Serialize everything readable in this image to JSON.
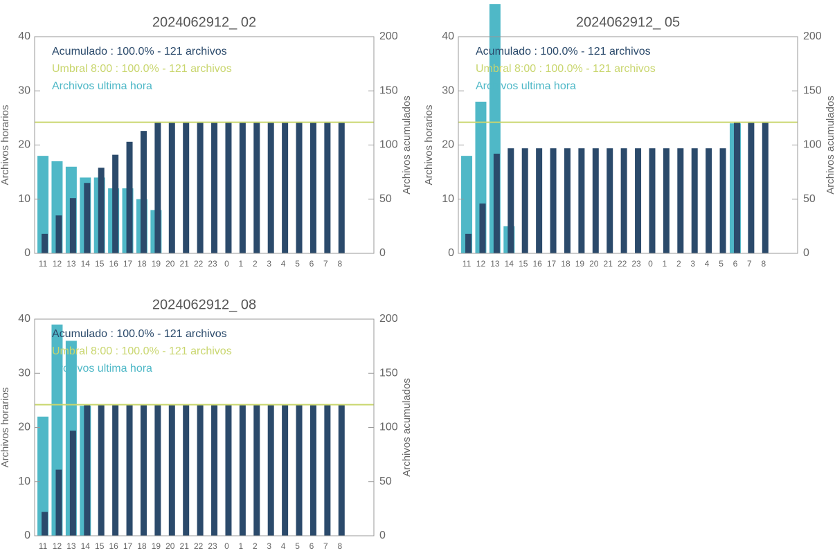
{
  "chart_data": [
    {
      "type": "bar",
      "title": "2024062912_ 02",
      "categories": [
        "11",
        "12",
        "13",
        "14",
        "15",
        "16",
        "17",
        "18",
        "19",
        "20",
        "21",
        "22",
        "23",
        "0",
        "1",
        "2",
        "3",
        "4",
        "5",
        "6",
        "7",
        "8"
      ],
      "series": [
        {
          "name": "Archivos ultima hora",
          "color": "#4fb8c7",
          "values": [
            18,
            17,
            16,
            14,
            14,
            12,
            12,
            10,
            8,
            0,
            0,
            0,
            0,
            0,
            0,
            0,
            0,
            0,
            0,
            0,
            0,
            0
          ]
        },
        {
          "name": "Acumulado : 100.0% - 121 archivos",
          "color": "#2b4a6b",
          "axis": "y2",
          "values": [
            18,
            35,
            51,
            65,
            79,
            91,
            103,
            113,
            121,
            121,
            121,
            121,
            121,
            121,
            121,
            121,
            121,
            121,
            121,
            121,
            121,
            121
          ]
        }
      ],
      "threshold": {
        "name": "Umbral 8:00 : 100.0% - 121 archivos",
        "color": "#c9d66e",
        "axis": "y2",
        "value": 121
      },
      "ylabel": "Archivos horarios",
      "y2label": "Archivos acumulados",
      "ylim": [
        0,
        40
      ],
      "yticks": [
        0,
        10,
        20,
        30,
        40
      ],
      "y2lim": [
        0,
        200
      ],
      "y2ticks": [
        0,
        50,
        100,
        150,
        200
      ]
    },
    {
      "type": "bar",
      "title": "2024062912_ 05",
      "categories": [
        "11",
        "12",
        "13",
        "14",
        "15",
        "16",
        "17",
        "18",
        "19",
        "20",
        "21",
        "22",
        "23",
        "0",
        "1",
        "2",
        "3",
        "4",
        "5",
        "6",
        "7",
        "8"
      ],
      "series": [
        {
          "name": "Archivos ultima hora",
          "color": "#4fb8c7",
          "values": [
            18,
            28,
            46,
            5,
            0,
            0,
            0,
            0,
            0,
            0,
            0,
            0,
            0,
            0,
            0,
            0,
            0,
            0,
            0,
            24,
            0,
            0
          ]
        },
        {
          "name": "Acumulado : 100.0% - 121 archivos",
          "color": "#2b4a6b",
          "axis": "y2",
          "values": [
            18,
            46,
            92,
            97,
            97,
            97,
            97,
            97,
            97,
            97,
            97,
            97,
            97,
            97,
            97,
            97,
            97,
            97,
            97,
            121,
            121,
            121
          ]
        }
      ],
      "threshold": {
        "name": "Umbral 8:00 : 100.0% - 121 archivos",
        "color": "#c9d66e",
        "axis": "y2",
        "value": 121
      },
      "ylabel": "Archivos horarios",
      "y2label": "Archivos acumulados",
      "ylim": [
        0,
        40
      ],
      "yticks": [
        0,
        10,
        20,
        30,
        40
      ],
      "y2lim": [
        0,
        200
      ],
      "y2ticks": [
        0,
        50,
        100,
        150,
        200
      ]
    },
    {
      "type": "bar",
      "title": "2024062912_ 08",
      "categories": [
        "11",
        "12",
        "13",
        "14",
        "15",
        "16",
        "17",
        "18",
        "19",
        "20",
        "21",
        "22",
        "23",
        "0",
        "1",
        "2",
        "3",
        "4",
        "5",
        "6",
        "7",
        "8"
      ],
      "series": [
        {
          "name": "Archivos ultima hora",
          "color": "#4fb8c7",
          "values": [
            22,
            39,
            36,
            24,
            0,
            0,
            0,
            0,
            0,
            0,
            0,
            0,
            0,
            0,
            0,
            0,
            0,
            0,
            0,
            0,
            0,
            0
          ]
        },
        {
          "name": "Acumulado : 100.0% - 121 archivos",
          "color": "#2b4a6b",
          "axis": "y2",
          "values": [
            22,
            61,
            97,
            121,
            121,
            121,
            121,
            121,
            121,
            121,
            121,
            121,
            121,
            121,
            121,
            121,
            121,
            121,
            121,
            121,
            121,
            121
          ]
        }
      ],
      "threshold": {
        "name": "Umbral 8:00 : 100.0% - 121 archivos",
        "color": "#c9d66e",
        "axis": "y2",
        "value": 121
      },
      "ylabel": "Archivos horarios",
      "y2label": "Archivos acumulados",
      "ylim": [
        0,
        40
      ],
      "yticks": [
        0,
        10,
        20,
        30,
        40
      ],
      "y2lim": [
        0,
        200
      ],
      "y2ticks": [
        0,
        50,
        100,
        150,
        200
      ]
    }
  ]
}
